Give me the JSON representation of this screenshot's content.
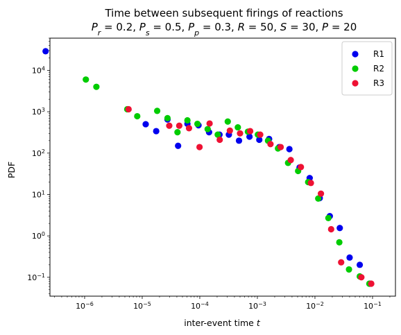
{
  "chart_data": {
    "type": "scatter",
    "title": "Time between subsequent firings of reactions",
    "subtitle": "P_r = 0.2, P_s = 0.5, P_p = 0.3, R = 50, S = 30, P = 20",
    "subtitle_parts": [
      {
        "text": "P",
        "italic": true
      },
      {
        "text": "r",
        "sub": true,
        "italic": true
      },
      {
        "text": " = 0.2, "
      },
      {
        "text": "P",
        "italic": true
      },
      {
        "text": "s",
        "sub": true,
        "italic": true
      },
      {
        "text": " = 0.5, "
      },
      {
        "text": "P",
        "italic": true
      },
      {
        "text": "p",
        "sub": true,
        "italic": true
      },
      {
        "text": " = 0.3, "
      },
      {
        "text": "R",
        "italic": true
      },
      {
        "text": " = 50, "
      },
      {
        "text": "S",
        "italic": true
      },
      {
        "text": " = 30, "
      },
      {
        "text": "P",
        "italic": true
      },
      {
        "text": " = 20"
      }
    ],
    "xlabel": "inter-event time t",
    "xlabel_parts": [
      {
        "text": "inter-event time "
      },
      {
        "text": "t",
        "italic": true
      }
    ],
    "ylabel": "PDF",
    "xscale": "log",
    "yscale": "log",
    "xlim": [
      2.5e-07,
      0.25
    ],
    "ylim": [
      0.035,
      60000
    ],
    "xticks": [
      {
        "value": 1e-06,
        "base": "10",
        "exp": "−6"
      },
      {
        "value": 1e-05,
        "base": "10",
        "exp": "−5"
      },
      {
        "value": 0.0001,
        "base": "10",
        "exp": "−4"
      },
      {
        "value": 0.001,
        "base": "10",
        "exp": "−3"
      },
      {
        "value": 0.01,
        "base": "10",
        "exp": "−2"
      },
      {
        "value": 0.1,
        "base": "10",
        "exp": "−1"
      }
    ],
    "yticks": [
      {
        "value": 0.1,
        "base": "10",
        "exp": "−1"
      },
      {
        "value": 1,
        "base": "10",
        "exp": "0"
      },
      {
        "value": 10,
        "base": "10",
        "exp": "1"
      },
      {
        "value": 100,
        "base": "10",
        "exp": "2"
      },
      {
        "value": 1000,
        "base": "10",
        "exp": "3"
      },
      {
        "value": 10000,
        "base": "10",
        "exp": "4"
      }
    ],
    "grid": false,
    "legend_position": "top-right",
    "series": [
      {
        "name": "R1",
        "color": "#0000ee",
        "points": [
          [
            2.1e-07,
            29000
          ],
          [
            1.15e-05,
            500
          ],
          [
            1.75e-05,
            340
          ],
          [
            2.75e-05,
            650
          ],
          [
            4.2e-05,
            150
          ],
          [
            6.1e-05,
            510
          ],
          [
            9.5e-05,
            470
          ],
          [
            0.000145,
            320
          ],
          [
            0.00022,
            280
          ],
          [
            0.00032,
            280
          ],
          [
            0.00048,
            200
          ],
          [
            0.00073,
            250
          ],
          [
            0.00108,
            210
          ],
          [
            0.0016,
            220
          ],
          [
            0.0024,
            140
          ],
          [
            0.0036,
            125
          ],
          [
            0.0054,
            45
          ],
          [
            0.0081,
            25
          ],
          [
            0.0121,
            8.2
          ],
          [
            0.0181,
            3.0
          ],
          [
            0.027,
            1.55
          ],
          [
            0.04,
            0.3
          ],
          [
            0.06,
            0.2
          ],
          [
            0.09,
            0.07
          ]
        ]
      },
      {
        "name": "R2",
        "color": "#00cc00",
        "points": [
          [
            1.05e-06,
            6000
          ],
          [
            1.6e-06,
            4000
          ],
          [
            5.5e-06,
            1150
          ],
          [
            8.2e-06,
            780
          ],
          [
            1.82e-05,
            1050
          ],
          [
            2.75e-05,
            700
          ],
          [
            4.1e-05,
            320
          ],
          [
            6.1e-05,
            620
          ],
          [
            9.1e-05,
            510
          ],
          [
            0.000137,
            380
          ],
          [
            0.000205,
            280
          ],
          [
            0.000306,
            580
          ],
          [
            0.000458,
            420
          ],
          [
            0.000685,
            330
          ],
          [
            0.00102,
            280
          ],
          [
            0.00153,
            200
          ],
          [
            0.00228,
            130
          ],
          [
            0.00341,
            58
          ],
          [
            0.0051,
            37
          ],
          [
            0.00762,
            20
          ],
          [
            0.0114,
            8.0
          ],
          [
            0.0171,
            2.7
          ],
          [
            0.0265,
            0.7
          ],
          [
            0.039,
            0.155
          ],
          [
            0.06,
            0.105
          ],
          [
            0.088,
            0.07
          ]
        ]
      },
      {
        "name": "R3",
        "color": "#ee1133",
        "points": [
          [
            5.8e-06,
            1150
          ],
          [
            2.95e-05,
            460
          ],
          [
            4.4e-05,
            460
          ],
          [
            6.5e-05,
            400
          ],
          [
            9.9e-05,
            140
          ],
          [
            0.000148,
            520
          ],
          [
            0.000222,
            210
          ],
          [
            0.000333,
            350
          ],
          [
            0.0005,
            300
          ],
          [
            0.00075,
            340
          ],
          [
            0.00112,
            280
          ],
          [
            0.00169,
            165
          ],
          [
            0.00254,
            140
          ],
          [
            0.0038,
            68
          ],
          [
            0.0057,
            46
          ],
          [
            0.0085,
            19
          ],
          [
            0.0127,
            10.5
          ],
          [
            0.0191,
            1.45
          ],
          [
            0.0285,
            0.23
          ],
          [
            0.064,
            0.1
          ],
          [
            0.095,
            0.07
          ]
        ]
      }
    ]
  }
}
